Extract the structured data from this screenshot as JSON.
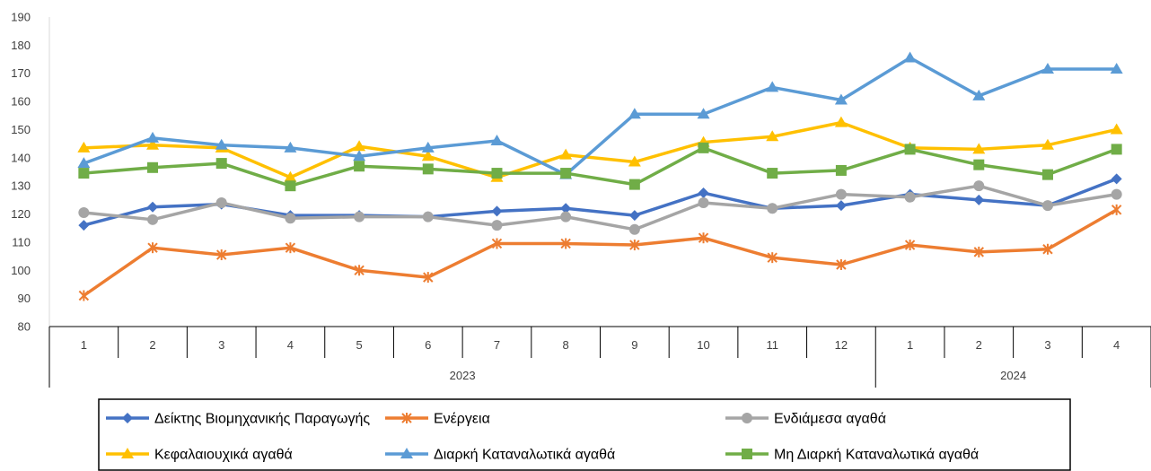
{
  "chart_data": {
    "type": "line",
    "title": "",
    "xlabel": "",
    "ylabel": "",
    "ylim": [
      80,
      190
    ],
    "yticks": [
      80,
      90,
      100,
      110,
      120,
      130,
      140,
      150,
      160,
      170,
      180,
      190
    ],
    "grid": false,
    "legend_position": "bottom",
    "categories": [
      "1",
      "2",
      "3",
      "4",
      "5",
      "6",
      "7",
      "8",
      "9",
      "10",
      "11",
      "12",
      "1",
      "2",
      "3",
      "4"
    ],
    "groups": [
      {
        "label": "2023",
        "count": 12
      },
      {
        "label": "2024",
        "count": 4
      }
    ],
    "series": [
      {
        "name": "Δείκτης Βιομηχανικής Παραγωγής",
        "color": "#4472C4",
        "marker": "diamond",
        "values": [
          116,
          122.5,
          123.5,
          119.5,
          119.5,
          119,
          121,
          122,
          119.5,
          127.5,
          122,
          123,
          127,
          125,
          123,
          132.5
        ]
      },
      {
        "name": "Ενέργεια",
        "color": "#ED7D31",
        "marker": "star",
        "values": [
          91,
          108,
          105.5,
          108,
          100,
          97.5,
          109.5,
          109.5,
          109,
          111.5,
          104.5,
          102,
          109,
          106.5,
          107.5,
          121.5
        ]
      },
      {
        "name": "Ενδιάμεσα αγαθά",
        "color": "#A5A5A5",
        "marker": "circle",
        "values": [
          120.5,
          118,
          124,
          118.5,
          119,
          119,
          116,
          119,
          114.5,
          124,
          122,
          127,
          126,
          130,
          123,
          127
        ]
      },
      {
        "name": "Κεφαλαιουχικά αγαθά",
        "color": "#FFC000",
        "marker": "triangle",
        "values": [
          143.5,
          144.5,
          143.5,
          133,
          144,
          140.5,
          133,
          141,
          138.5,
          145.5,
          147.5,
          152.5,
          143.5,
          143,
          144.5,
          150
        ]
      },
      {
        "name": "Διαρκή Καταναλωτικά αγαθά",
        "color": "#5B9BD5",
        "marker": "triangle",
        "values": [
          138,
          147,
          144.5,
          143.5,
          140.5,
          143.5,
          146,
          134,
          155.5,
          155.5,
          165,
          160.5,
          175.5,
          162,
          171.5,
          171.5
        ]
      },
      {
        "name": "Μη Διαρκή Καταναλωτικά αγαθά",
        "color": "#70AD47",
        "marker": "square",
        "values": [
          134.5,
          136.5,
          138,
          130,
          137,
          136,
          134.5,
          134.5,
          130.5,
          143.5,
          134.5,
          135.5,
          143,
          137.5,
          134,
          143
        ]
      }
    ]
  }
}
